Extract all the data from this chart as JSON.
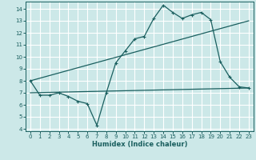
{
  "title": "",
  "xlabel": "Humidex (Indice chaleur)",
  "background_color": "#cce8e8",
  "grid_color": "#ffffff",
  "line_color": "#1a5f5f",
  "xlim": [
    -0.5,
    23.5
  ],
  "ylim": [
    3.8,
    14.6
  ],
  "xticks": [
    0,
    1,
    2,
    3,
    4,
    5,
    6,
    7,
    8,
    9,
    10,
    11,
    12,
    13,
    14,
    15,
    16,
    17,
    18,
    19,
    20,
    21,
    22,
    23
  ],
  "yticks": [
    4,
    5,
    6,
    7,
    8,
    9,
    10,
    11,
    12,
    13,
    14
  ],
  "series1_x": [
    0,
    1,
    2,
    3,
    4,
    5,
    6,
    7,
    8,
    9,
    10,
    11,
    12,
    13,
    14,
    15,
    16,
    17,
    18,
    19,
    20,
    21,
    22,
    23
  ],
  "series1_y": [
    8.0,
    6.8,
    6.8,
    7.0,
    6.7,
    6.3,
    6.1,
    4.3,
    7.0,
    9.5,
    10.5,
    11.5,
    11.7,
    13.2,
    14.3,
    13.7,
    13.2,
    13.5,
    13.7,
    13.1,
    9.6,
    8.3,
    7.5,
    7.4
  ],
  "series2_x": [
    0,
    23
  ],
  "series2_y": [
    7.0,
    7.4
  ],
  "series3_x": [
    0,
    23
  ],
  "series3_y": [
    8.0,
    13.0
  ],
  "xlabel_fontsize": 6.0,
  "tick_fontsize": 5.0
}
